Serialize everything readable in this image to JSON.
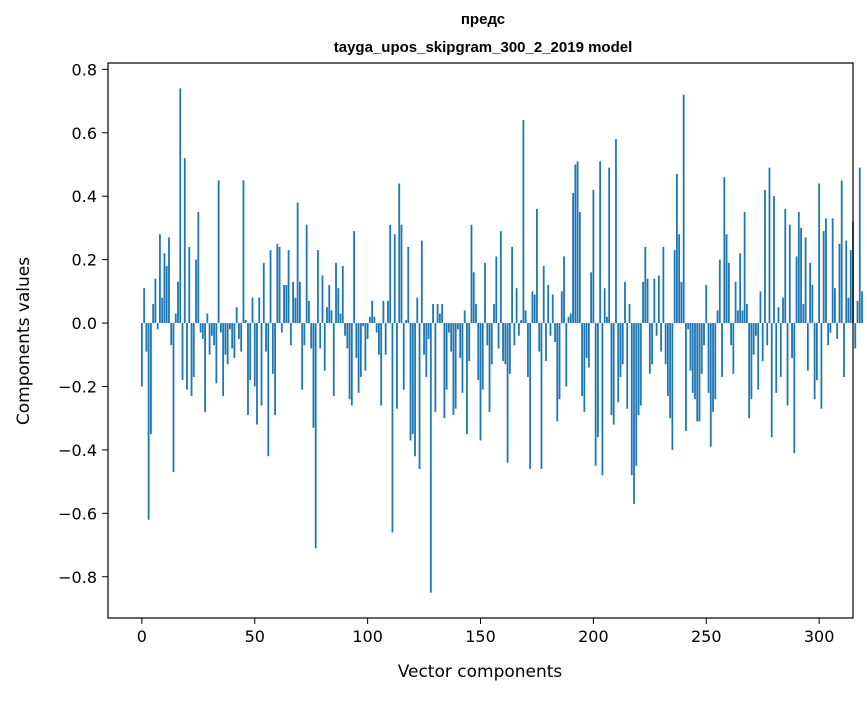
{
  "chart_data": {
    "type": "bar",
    "title": "предс",
    "subtitle": "tayga_upos_skipgram_300_2_2019 model",
    "xlabel": "Vector components",
    "ylabel": "Components values",
    "xlim": [
      -15,
      315
    ],
    "ylim": [
      -0.93,
      0.82
    ],
    "xticks": [
      0,
      50,
      100,
      150,
      200,
      250,
      300
    ],
    "xtick_labels": [
      "0",
      "50",
      "100",
      "150",
      "200",
      "250",
      "300"
    ],
    "yticks": [
      -0.8,
      -0.6,
      -0.4,
      -0.2,
      0.0,
      0.2,
      0.4,
      0.6,
      0.8
    ],
    "ytick_labels": [
      "−0.8",
      "−0.6",
      "−0.4",
      "−0.2",
      "0.0",
      "0.2",
      "0.4",
      "0.6",
      "0.8"
    ],
    "bar_color": "#1f77b4",
    "grid": false,
    "values": [
      -0.2,
      0.11,
      -0.09,
      -0.62,
      -0.35,
      0.06,
      0.14,
      -0.02,
      0.28,
      0.08,
      0.22,
      0.18,
      0.27,
      -0.07,
      -0.47,
      0.03,
      0.13,
      0.74,
      -0.18,
      0.52,
      -0.21,
      0.24,
      -0.23,
      -0.17,
      0.2,
      0.35,
      -0.03,
      -0.05,
      -0.28,
      0.03,
      -0.1,
      -0.04,
      -0.07,
      -0.19,
      0.45,
      -0.03,
      -0.23,
      -0.1,
      -0.13,
      -0.02,
      -0.08,
      -0.11,
      0.05,
      -0.05,
      -0.09,
      0.45,
      0.01,
      -0.29,
      -0.18,
      0.08,
      -0.2,
      -0.32,
      0.08,
      -0.26,
      0.19,
      -0.09,
      -0.42,
      0.23,
      -0.16,
      -0.29,
      0.25,
      0.24,
      -0.03,
      0.12,
      0.12,
      0.23,
      -0.07,
      0.13,
      0.08,
      0.38,
      0.13,
      -0.21,
      -0.07,
      0.31,
      0.07,
      -0.08,
      -0.33,
      -0.71,
      0.23,
      -0.08,
      0.15,
      -0.15,
      0.05,
      0.12,
      0.04,
      -0.23,
      0.19,
      0.11,
      0.03,
      0.18,
      -0.04,
      -0.08,
      -0.24,
      -0.26,
      0.29,
      -0.11,
      -0.22,
      -0.17,
      -0.01,
      -0.15,
      -0.05,
      0.02,
      0.07,
      0.02,
      -0.03,
      -0.1,
      -0.26,
      0.07,
      -0.1,
      0.07,
      0.31,
      -0.66,
      0.28,
      -0.27,
      0.44,
      0.31,
      -0.21,
      0.01,
      0.24,
      -0.37,
      -0.35,
      -0.42,
      0.08,
      -0.46,
      0.26,
      -0.1,
      -0.17,
      -0.05,
      -0.85,
      0.06,
      -0.28,
      0.06,
      0.03,
      0.06,
      -0.3,
      -0.21,
      -0.03,
      -0.09,
      -0.29,
      -0.27,
      -0.02,
      -0.11,
      -0.22,
      0.04,
      -0.35,
      -0.12,
      0.31,
      0.16,
      0.06,
      -0.18,
      -0.37,
      -0.21,
      0.19,
      -0.07,
      -0.28,
      -0.13,
      0.06,
      0.21,
      -0.08,
      0.29,
      -0.12,
      -0.13,
      -0.44,
      -0.16,
      0.24,
      -0.07,
      0.11,
      -0.04,
      0.01,
      0.64,
      0.04,
      -0.17,
      -0.46,
      0.1,
      0.09,
      0.36,
      -0.09,
      -0.46,
      0.18,
      -0.12,
      0.12,
      -0.04,
      0.09,
      -0.06,
      -0.31,
      -0.24,
      0.1,
      0.21,
      -0.2,
      0.02,
      0.03,
      0.41,
      0.5,
      0.51,
      0.35,
      -0.23,
      -0.28,
      -0.11,
      -0.14,
      0.16,
      0.42,
      -0.45,
      -0.36,
      0.51,
      -0.48,
      0.11,
      0.02,
      0.49,
      -0.29,
      -0.32,
      0.58,
      -0.25,
      -0.17,
      -0.13,
      0.13,
      -0.27,
      0.06,
      -0.48,
      -0.57,
      -0.45,
      -0.29,
      -0.26,
      0.13,
      0.24,
      0.14,
      -0.16,
      -0.13,
      0.14,
      -0.04,
      0.15,
      -0.09,
      0.24,
      -0.13,
      -0.23,
      -0.3,
      -0.4,
      0.23,
      0.47,
      0.28,
      0.13,
      0.72,
      -0.34,
      -0.02,
      -0.15,
      -0.22,
      -0.24,
      -0.31,
      -0.31,
      -0.16,
      -0.07,
      0.12,
      -0.22,
      -0.39,
      -0.28,
      -0.24,
      0.04,
      0.2,
      -0.17,
      0.46,
      0.28,
      0.19,
      -0.07,
      -0.16,
      0.13,
      0.04,
      0.22,
      0.04,
      0.35,
      0.06,
      -0.3,
      -0.24,
      -0.1,
      -0.04,
      -0.21,
      0.1,
      -0.12,
      0.42,
      -0.07,
      0.49,
      -0.36,
      0.4,
      -0.22,
      0.05,
      -0.17,
      0.08,
      0.36,
      -0.26,
      0.31,
      -0.11,
      -0.41,
      0.21,
      0.35,
      0.3,
      0.06,
      0.27,
      -0.15,
      0.19,
      0.12,
      -0.24,
      -0.18,
      0.44,
      -0.27,
      0.29,
      0.33,
      -0.07,
      -0.03,
      0.33,
      0.11,
      -0.05,
      0.25,
      0.45,
      -0.17,
      0.26,
      0.08,
      0.23,
      0.32,
      -0.08,
      0.07,
      0.49,
      0.1
    ]
  }
}
